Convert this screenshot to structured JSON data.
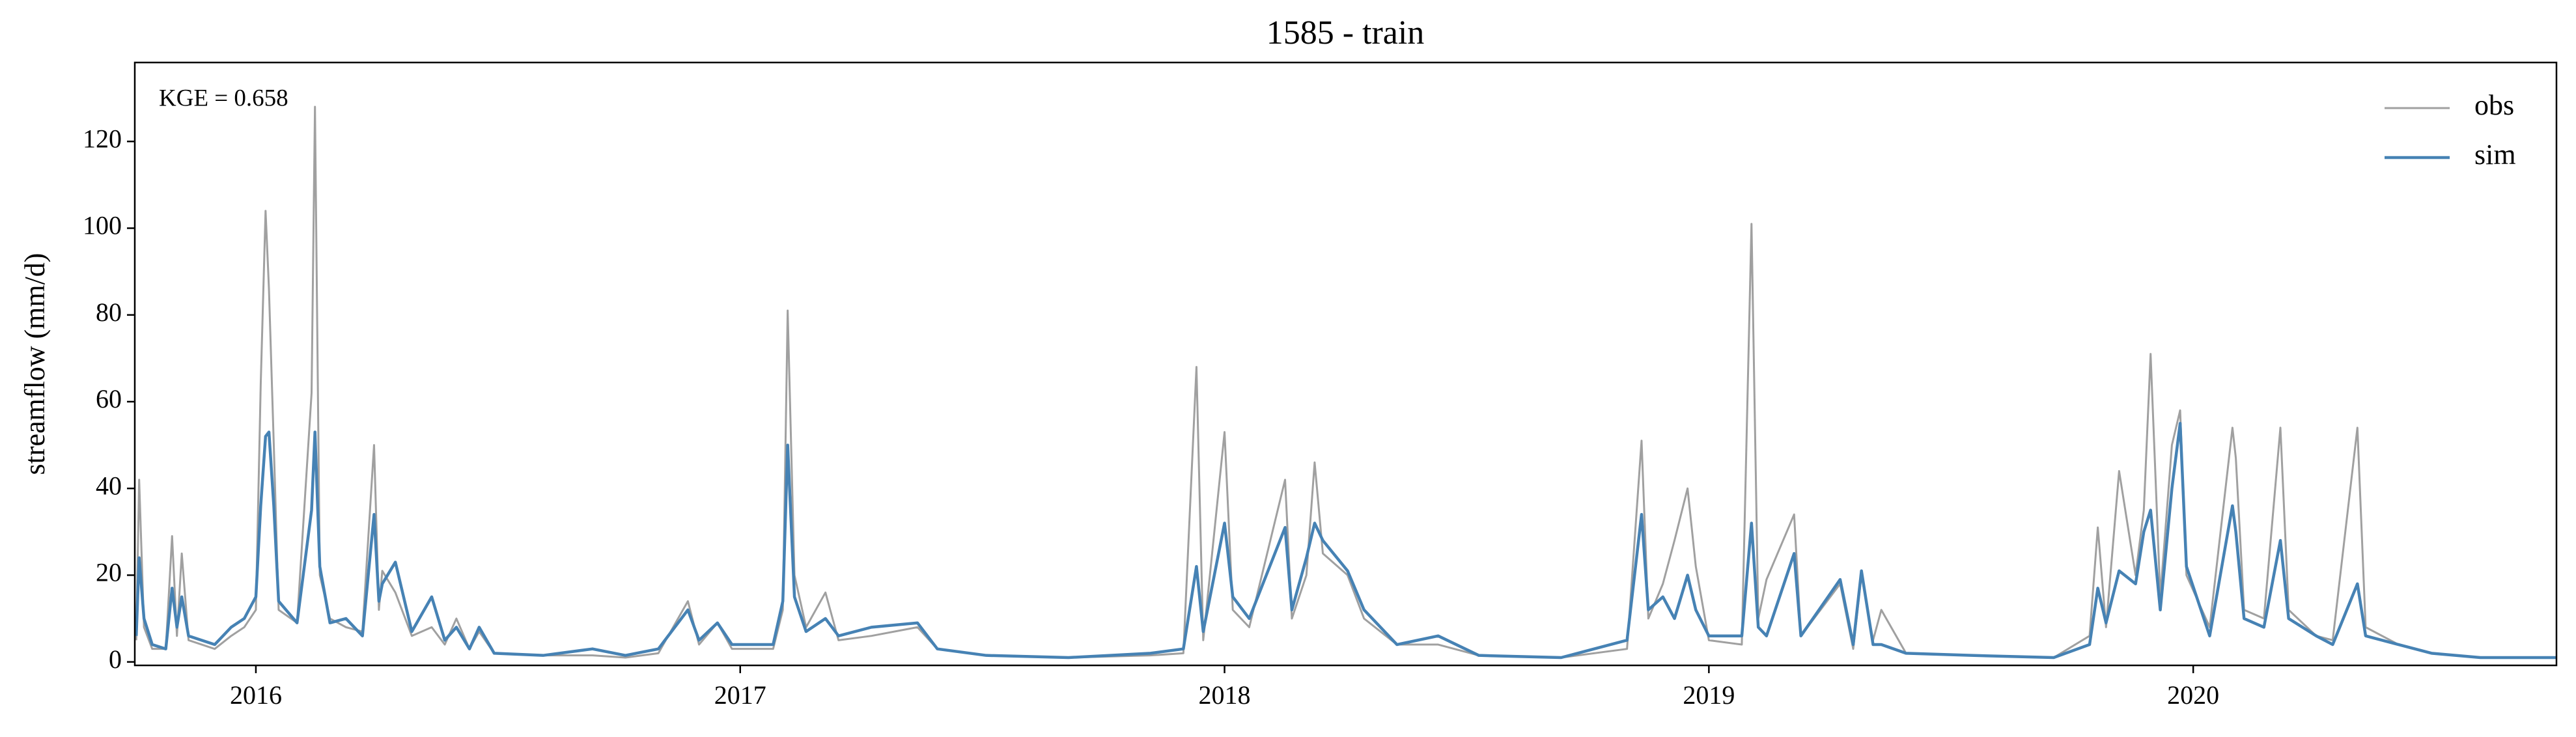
{
  "chart_data": {
    "type": "line",
    "title": "1585 - train",
    "y_label": "streamflow (mm/d)",
    "annotation": "KGE = 0.658",
    "x": [
      2015.753,
      2015.759,
      2015.769,
      2015.786,
      2015.814,
      2015.827,
      2015.837,
      2015.847,
      2015.861,
      2015.915,
      2015.949,
      2015.976,
      2016.0,
      2016.01,
      2016.02,
      2016.027,
      2016.037,
      2016.047,
      2016.085,
      2016.115,
      2016.122,
      2016.132,
      2016.153,
      2016.186,
      2016.22,
      2016.244,
      2016.254,
      2016.261,
      2016.288,
      2016.322,
      2016.363,
      2016.39,
      2016.414,
      2016.441,
      2016.461,
      2016.492,
      2016.593,
      2016.695,
      2016.763,
      2016.831,
      2016.892,
      2016.915,
      2016.953,
      2016.983,
      2017.068,
      2017.088,
      2017.098,
      2017.112,
      2017.136,
      2017.176,
      2017.203,
      2017.271,
      2017.366,
      2017.407,
      2017.508,
      2017.678,
      2017.847,
      2017.915,
      2017.942,
      2017.956,
      2018.0,
      2018.017,
      2018.051,
      2018.125,
      2018.139,
      2018.169,
      2018.186,
      2018.203,
      2018.254,
      2018.288,
      2018.356,
      2018.441,
      2018.525,
      2018.695,
      2018.831,
      2018.861,
      2018.875,
      2018.905,
      2018.929,
      2018.956,
      2018.973,
      2019.0,
      2019.068,
      2019.088,
      2019.102,
      2019.119,
      2019.176,
      2019.19,
      2019.271,
      2019.298,
      2019.315,
      2019.339,
      2019.356,
      2019.407,
      2019.542,
      2019.712,
      2019.786,
      2019.803,
      2019.82,
      2019.847,
      2019.881,
      2019.898,
      2019.912,
      2019.932,
      2019.956,
      2019.973,
      2019.986,
      2020.034,
      2020.081,
      2020.088,
      2020.105,
      2020.146,
      2020.18,
      2020.197,
      2020.254,
      2020.288,
      2020.339,
      2020.356,
      2020.424,
      2020.492,
      2020.593,
      2020.749
    ],
    "series": [
      {
        "name": "obs",
        "color": "#a0a0a0",
        "values": [
          5,
          42,
          8,
          3,
          3,
          29,
          6,
          25,
          5,
          3,
          6,
          8,
          12,
          64,
          104,
          86,
          50,
          12,
          9,
          62,
          128,
          20,
          10,
          8,
          7,
          50,
          12,
          21,
          16,
          6,
          8,
          4,
          10,
          3,
          7,
          2,
          1.5,
          1.5,
          1,
          2,
          14,
          4,
          9,
          3,
          3,
          12,
          81,
          20,
          8,
          16,
          5,
          6,
          8,
          3,
          1.5,
          1,
          1.5,
          2,
          68,
          5,
          53,
          12,
          8,
          42,
          10,
          20,
          46,
          25,
          20,
          10,
          4,
          4,
          1.5,
          1,
          3,
          51,
          10,
          18,
          28,
          40,
          22,
          5,
          4,
          101,
          10,
          19,
          34,
          6,
          18,
          3,
          20,
          5,
          12,
          2,
          1.5,
          1,
          6,
          31,
          8,
          44,
          20,
          35,
          71,
          15,
          50,
          58,
          20,
          8,
          54,
          47,
          12,
          10,
          54,
          12,
          6,
          5,
          54,
          8,
          4,
          2,
          1,
          1
        ]
      },
      {
        "name": "sim",
        "color": "#4682b4",
        "values": [
          6,
          24,
          10,
          4,
          3,
          17,
          8,
          15,
          6,
          4,
          8,
          10,
          15,
          36,
          52,
          53,
          36,
          14,
          9,
          35,
          53,
          22,
          9,
          10,
          6,
          34,
          14,
          18,
          23,
          7,
          15,
          5,
          8,
          3,
          8,
          2,
          1.5,
          3,
          1.5,
          3,
          12,
          5,
          9,
          4,
          4,
          14,
          50,
          15,
          7,
          10,
          6,
          8,
          9,
          3,
          1.5,
          1,
          2,
          3,
          22,
          7,
          32,
          15,
          10,
          31,
          12,
          24,
          32,
          28,
          21,
          12,
          4,
          6,
          1.5,
          1,
          5,
          34,
          12,
          15,
          10,
          20,
          12,
          6,
          6,
          32,
          8,
          6,
          25,
          6,
          19,
          4,
          21,
          4,
          4,
          2,
          1.5,
          1,
          4,
          17,
          9,
          21,
          18,
          30,
          35,
          12,
          40,
          55,
          22,
          6,
          36,
          30,
          10,
          8,
          28,
          10,
          6,
          4,
          18,
          6,
          4,
          2,
          1,
          1
        ]
      }
    ],
    "xlim": [
      2015.75,
      2020.75
    ],
    "xticks": [
      2016,
      2017,
      2018,
      2019,
      2020
    ],
    "ylim": [
      -0.8,
      138.2
    ],
    "yticks": [
      0,
      20,
      40,
      60,
      80,
      100,
      120
    ],
    "legend": "upper right"
  }
}
